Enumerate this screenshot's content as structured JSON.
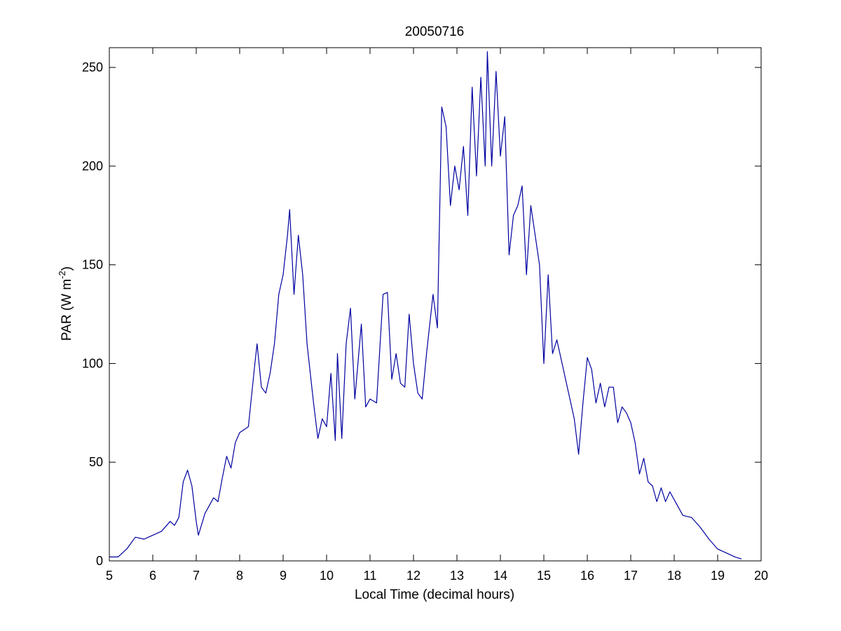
{
  "chart_data": {
    "type": "line",
    "title": "20050716",
    "xlabel": "Local Time (decimal hours)",
    "ylabel": {
      "base": "PAR (W m",
      "superscript": "-2",
      "close": ")"
    },
    "xlim": [
      5,
      20
    ],
    "ylim": [
      0,
      260
    ],
    "xticks": [
      5,
      6,
      7,
      8,
      9,
      10,
      11,
      12,
      13,
      14,
      15,
      16,
      17,
      18,
      19,
      20
    ],
    "yticks": [
      0,
      50,
      100,
      150,
      200,
      250
    ],
    "grid": false,
    "line_color": "#0000a0",
    "series": [
      {
        "x": [
          5.0,
          5.2,
          5.4,
          5.6,
          5.8,
          5.9,
          6.0,
          6.2,
          6.4,
          6.5,
          6.6,
          6.7,
          6.8,
          6.9,
          7.0,
          7.05,
          7.2,
          7.4,
          7.5,
          7.6,
          7.7,
          7.8,
          7.9,
          8.0,
          8.2,
          8.35,
          8.4,
          8.5,
          8.6,
          8.7,
          8.8,
          8.9,
          9.0,
          9.1,
          9.15,
          9.25,
          9.35,
          9.45,
          9.55,
          9.7,
          9.8,
          9.9,
          10.0,
          10.1,
          10.2,
          10.25,
          10.35,
          10.45,
          10.55,
          10.65,
          10.8,
          10.9,
          11.0,
          11.15,
          11.3,
          11.4,
          11.5,
          11.6,
          11.7,
          11.8,
          11.9,
          12.0,
          12.1,
          12.2,
          12.3,
          12.45,
          12.55,
          12.65,
          12.75,
          12.85,
          12.95,
          13.05,
          13.15,
          13.25,
          13.35,
          13.45,
          13.55,
          13.65,
          13.7,
          13.8,
          13.9,
          14.0,
          14.1,
          14.2,
          14.3,
          14.4,
          14.5,
          14.6,
          14.7,
          14.8,
          14.9,
          15.0,
          15.1,
          15.2,
          15.3,
          15.5,
          15.7,
          15.8,
          15.9,
          16.0,
          16.1,
          16.2,
          16.3,
          16.4,
          16.5,
          16.6,
          16.7,
          16.8,
          16.9,
          17.0,
          17.1,
          17.2,
          17.3,
          17.4,
          17.5,
          17.6,
          17.7,
          17.8,
          17.9,
          18.0,
          18.2,
          18.4,
          18.6,
          18.8,
          19.0,
          19.2,
          19.4,
          19.55
        ],
        "y": [
          2,
          2,
          6,
          12,
          11,
          12,
          13,
          15,
          20,
          18,
          22,
          40,
          46,
          38,
          20,
          13,
          24,
          32,
          30,
          42,
          53,
          47,
          60,
          65,
          68,
          100,
          110,
          88,
          85,
          95,
          110,
          135,
          145,
          165,
          178,
          135,
          165,
          145,
          110,
          80,
          62,
          72,
          68,
          95,
          61,
          105,
          62,
          110,
          128,
          82,
          120,
          78,
          82,
          80,
          135,
          136,
          92,
          105,
          90,
          88,
          125,
          100,
          85,
          82,
          105,
          135,
          118,
          230,
          220,
          180,
          200,
          188,
          210,
          175,
          240,
          195,
          245,
          200,
          258,
          200,
          248,
          205,
          225,
          155,
          175,
          180,
          190,
          145,
          180,
          165,
          150,
          100,
          145,
          105,
          112,
          92,
          72,
          54,
          80,
          103,
          97,
          80,
          90,
          78,
          88,
          88,
          70,
          78,
          75,
          70,
          60,
          44,
          52,
          40,
          38,
          30,
          37,
          30,
          35,
          31,
          23,
          22,
          17,
          11,
          6,
          4,
          2,
          1
        ]
      }
    ]
  }
}
